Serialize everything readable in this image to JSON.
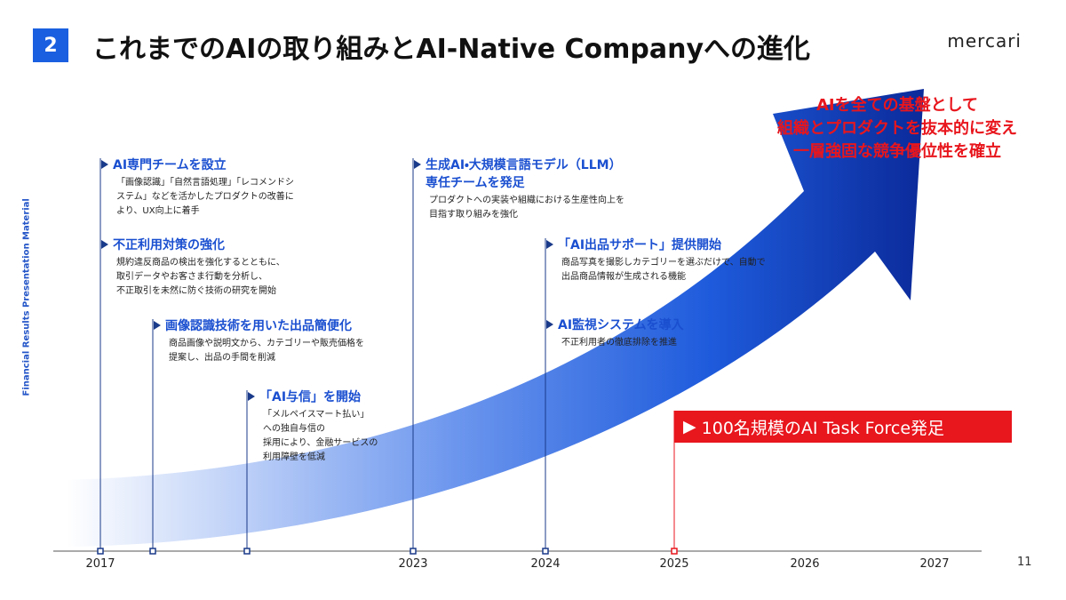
{
  "header": {
    "number": "2",
    "title": "これまでのAIの取り組みとAI-Native Companyへの進化",
    "logo": "mercari"
  },
  "side_label": "Financial Results Presentation Material",
  "page_number": "11",
  "timeline": {
    "years": [
      "2017",
      "2023",
      "2024",
      "2025",
      "2026",
      "2027"
    ]
  },
  "milestones": [
    {
      "title": [
        "AI専門チームを設立"
      ],
      "description": [
        "「画像認識」「自然言語処理」「レコメンドシ",
        "ステム」などを活かしたプロダクトの改善に",
        "より、UX向上に着手"
      ]
    },
    {
      "title": [
        "不正利用対策の強化"
      ],
      "description": [
        "規約違反商品の検出を強化するとともに、",
        "取引データやお客さま行動を分析し、",
        "不正取引を未然に防ぐ技術の研究を開始"
      ]
    },
    {
      "title": [
        "画像認識技術を用いた出品簡便化"
      ],
      "description": [
        "商品画像や説明文から、カテゴリーや販売価格を",
        "提案し、出品の手間を削減"
      ]
    },
    {
      "title": [
        "「AI与信」を開始"
      ],
      "description": [
        "「メルペイスマート払い」",
        "への独自与信の",
        "採用により、金融サービスの",
        "利用障壁を低減"
      ]
    },
    {
      "title": [
        "生成AI・大規模言語モデル（LLM）",
        "専任チームを発足"
      ],
      "description": [
        "プロダクトへの実装や組織における生産性向上を",
        "目指す取り組みを強化"
      ]
    },
    {
      "title": [
        "「AI出品サポート」提供開始"
      ],
      "description": [
        "商品写真を撮影しカテゴリーを選ぶだけで、自動で",
        "出品商品情報が生成される機能"
      ]
    },
    {
      "title": [
        "AI監視システムを導入"
      ],
      "description": [
        "不正利用者の徹底排除を推進"
      ]
    }
  ],
  "callout": "100名規模のAI Task Force発足",
  "goal": [
    "AIを全ての基盤として",
    "組織とプロダクトを抜本的に変え",
    "一層強固な競争優位性を確立"
  ]
}
